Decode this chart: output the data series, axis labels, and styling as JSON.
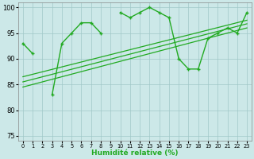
{
  "x": [
    0,
    1,
    2,
    3,
    4,
    5,
    6,
    7,
    8,
    9,
    10,
    11,
    12,
    13,
    14,
    15,
    16,
    17,
    18,
    19,
    20,
    21,
    22,
    23
  ],
  "y_data": [
    93,
    91,
    null,
    83,
    93,
    95,
    97,
    97,
    95,
    null,
    99,
    98,
    99,
    100,
    99,
    98,
    90,
    88,
    88,
    94,
    95,
    96,
    95,
    99
  ],
  "tl1": [
    86.5,
    97.5
  ],
  "tl2": [
    84.5,
    96.0
  ],
  "tl3": [
    85.5,
    96.8
  ],
  "ylim": [
    74,
    101
  ],
  "yticks": [
    75,
    80,
    85,
    90,
    95,
    100
  ],
  "xlim": [
    -0.5,
    23.5
  ],
  "xlabel": "Humidité relative (%)",
  "bg_color": "#cce8e8",
  "line_color": "#22aa22",
  "grid_color": "#a0c8c8",
  "title": ""
}
